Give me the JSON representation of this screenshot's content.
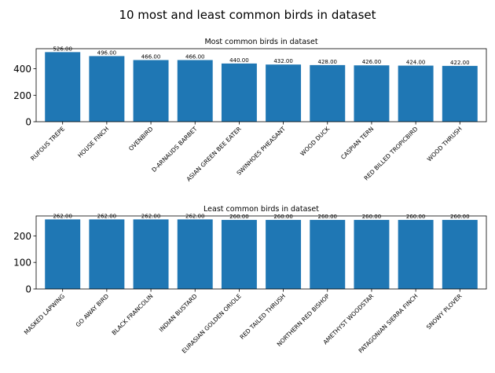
{
  "figure": {
    "title": "10 most and least common birds in dataset"
  },
  "chart_data": [
    {
      "type": "bar",
      "title": "Most common birds in dataset",
      "xlabel": "",
      "ylabel": "",
      "ylim": [
        0,
        552
      ],
      "yticks": [
        0,
        200,
        400
      ],
      "bar_color": "#1f77b4",
      "categories": [
        "RUFOUS TREPE",
        "HOUSE FINCH",
        "OVENBIRD",
        "D-ARNAUDS BARBET",
        "ASIAN GREEN BEE EATER",
        "SWINHOES PHEASANT",
        "WOOD DUCK",
        "CASPIAN TERN",
        "RED BILLED TROPICBIRD",
        "WOOD THRUSH"
      ],
      "values": [
        526,
        496,
        466,
        466,
        440,
        432,
        428,
        426,
        424,
        422
      ],
      "value_labels": [
        "526.00",
        "496.00",
        "466.00",
        "466.00",
        "440.00",
        "432.00",
        "428.00",
        "426.00",
        "424.00",
        "422.00"
      ]
    },
    {
      "type": "bar",
      "title": "Least common birds in dataset",
      "xlabel": "",
      "ylabel": "",
      "ylim": [
        0,
        275
      ],
      "yticks": [
        0,
        100,
        200
      ],
      "bar_color": "#1f77b4",
      "categories": [
        "MASKED LAPWING",
        "GO AWAY BIRD",
        "BLACK FRANCOLIN",
        "INDIAN BUSTARD",
        "EURASIAN GOLDEN ORIOLE",
        "RED TAILED THRUSH",
        "NORTHERN RED BISHOP",
        "AMETHYST WOODSTAR",
        "PATAGONIAN SIERRA FINCH",
        "SNOWY PLOVER"
      ],
      "values": [
        262,
        262,
        262,
        262,
        260,
        260,
        260,
        260,
        260,
        260
      ],
      "value_labels": [
        "262.00",
        "262.00",
        "262.00",
        "262.00",
        "260.00",
        "260.00",
        "260.00",
        "260.00",
        "260.00",
        "260.00"
      ]
    }
  ]
}
